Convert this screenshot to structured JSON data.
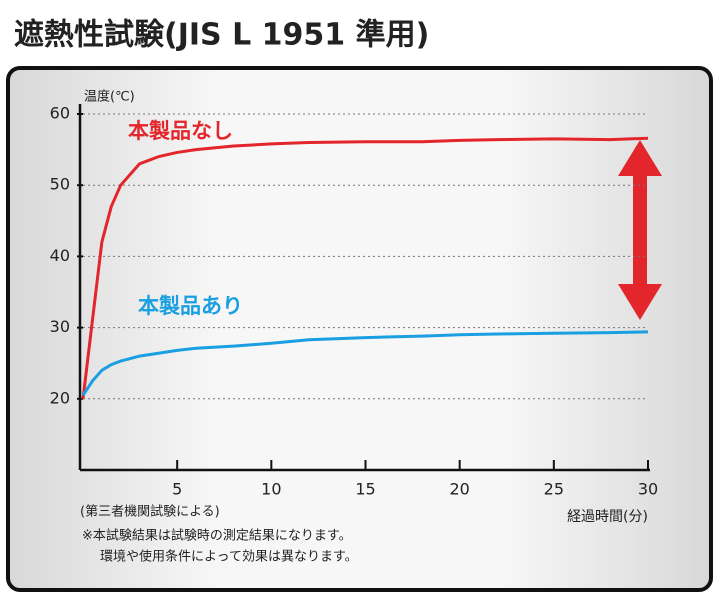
{
  "chart_data": {
    "type": "line",
    "title": "遮熱性試験(JIS L 1951 準用)",
    "y_label": "温度(℃)",
    "x_label": "経過時間(分)",
    "notes": [
      "(第三者機関試験による)",
      "※本試験結果は試験時の測定結果になります。",
      "環境や使用条件によって効果は異なります。"
    ],
    "x": [
      0,
      0.5,
      1,
      1.5,
      2,
      3,
      4,
      5,
      6,
      8,
      10,
      12,
      15,
      18,
      20,
      22,
      25,
      28,
      30
    ],
    "series": [
      {
        "name": "本製品なし",
        "color": "#e3262b",
        "values": [
          20,
          31,
          42,
          47,
          50,
          53,
          54,
          54.6,
          55,
          55.5,
          55.8,
          56,
          56.1,
          56.1,
          56.3,
          56.4,
          56.5,
          56.4,
          56.6
        ]
      },
      {
        "name": "本製品あり",
        "color": "#1a9fe0",
        "values": [
          20.5,
          22.5,
          24,
          24.8,
          25.3,
          26,
          26.4,
          26.8,
          27.1,
          27.4,
          27.8,
          28.3,
          28.6,
          28.8,
          29,
          29.1,
          29.2,
          29.3,
          29.4
        ]
      }
    ],
    "xlim": [
      0,
      30
    ],
    "xticks": [
      5,
      10,
      15,
      20,
      25,
      30
    ],
    "ylim": [
      10,
      60
    ],
    "yticks": [
      20,
      30,
      40,
      50,
      60
    ],
    "grid": true
  }
}
